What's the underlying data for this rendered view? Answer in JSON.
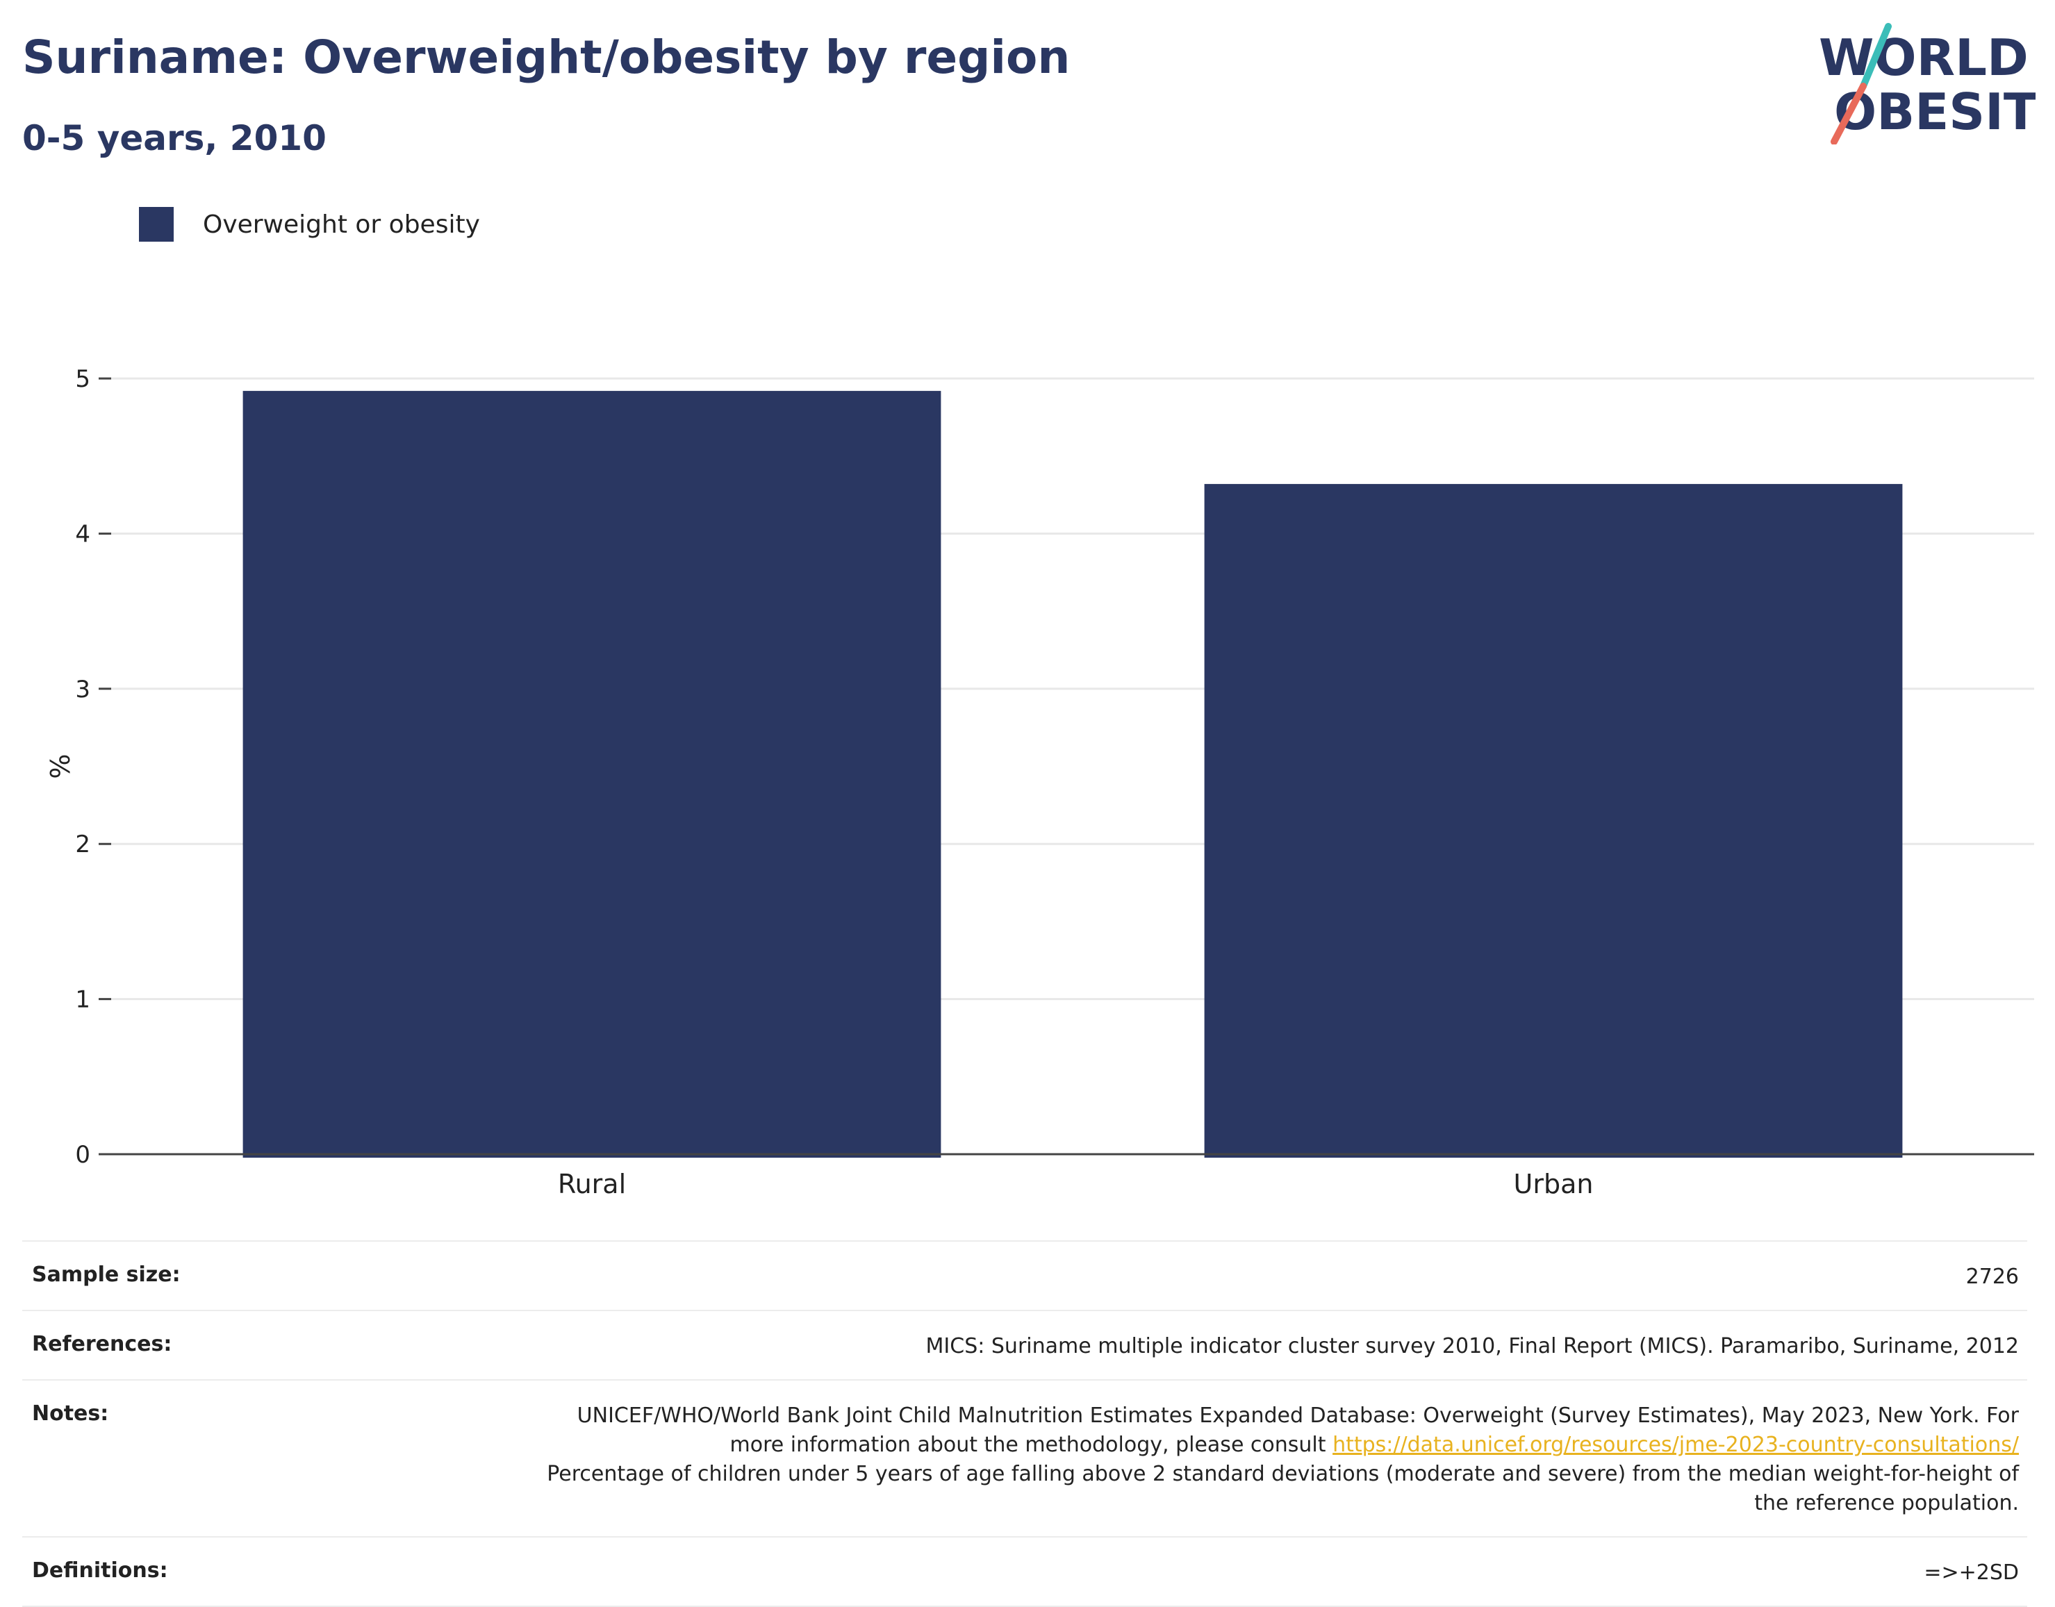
{
  "header": {
    "title": "Suriname: Overweight/obesity by region",
    "subtitle": "0-5 years, 2010"
  },
  "logo": {
    "line1": "WORLD",
    "line2": "OBESITY",
    "accent_teal": "#3bbdb8",
    "accent_coral": "#e86a5a"
  },
  "colors": {
    "bar": "#2a3762",
    "grid": "#e8e8e8",
    "axis": "#444444"
  },
  "chart_data": {
    "type": "bar",
    "categories": [
      "Rural",
      "Urban"
    ],
    "series": [
      {
        "name": "Overweight or obesity",
        "values": [
          4.92,
          4.32
        ]
      }
    ],
    "ylabel": "%",
    "ylim": [
      0,
      5
    ],
    "yticks": [
      0,
      1,
      2,
      3,
      4,
      5
    ],
    "grid": true,
    "legend_position": "top-left"
  },
  "info": {
    "sample_size_label": "Sample size:",
    "sample_size_value": "2726",
    "references_label": "References:",
    "references_value": "MICS: Suriname multiple indicator cluster survey 2010, Final Report (MICS). Paramaribo, Suriname, 2012",
    "notes_label": "Notes:",
    "notes_text_1": "UNICEF/WHO/World Bank Joint Child Malnutrition Estimates Expanded Database: Overweight (Survey Estimates), May 2023, New York. For more information about the methodology, please consult",
    "notes_link": "https://data.unicef.org/resources/jme-2023-country-consultations/",
    "notes_text_2": "Percentage of children under 5 years of age falling above 2 standard deviations (moderate and severe) from the median weight-for-height of the reference population.",
    "definitions_label": "Definitions:",
    "definitions_value": "=>+2SD"
  }
}
